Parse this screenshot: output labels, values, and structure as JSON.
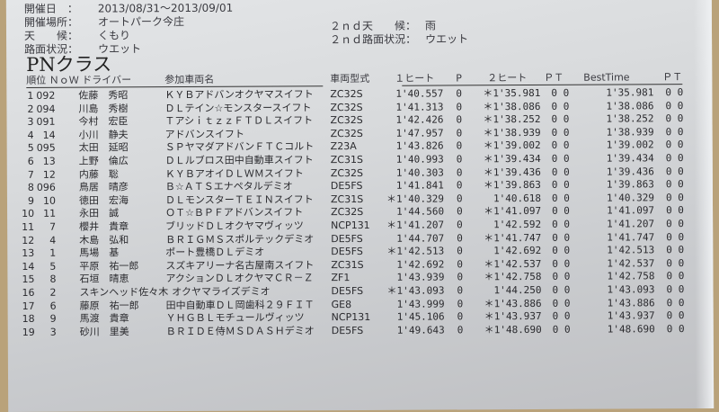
{
  "header": {
    "date_label": "開催日　：",
    "date_value": "2013/08/31～2013/09/01",
    "venue_label": "開催場所：",
    "venue_value": "オートパーク今庄",
    "weather_label": "天　　候：",
    "weather_value": "くもり",
    "road_label": "路面状況：",
    "road_value": "ウエット",
    "weather2_label": "２ｎｄ天　　候：",
    "weather2_value": "雨",
    "road2_label": "２ｎｄ路面状況：",
    "road2_value": "ウエット"
  },
  "class_title": "PNクラス",
  "columns": {
    "rank_no_driver": "順位 ＮｏＷ ドライバー",
    "car_name": "参加車両名",
    "model": "車両型式",
    "heat1": "１ヒート",
    "p": "P",
    "heat2": "２ヒート",
    "pt": "ＰＴ",
    "best": "BestTime",
    "pt2": "ＰＴ"
  },
  "rows": [
    {
      "rank": "1",
      "no": "092",
      "driver": "佐藤　秀昭",
      "car": "ＫＹＢアドバンオクヤマスイフト",
      "model": "ZC32S",
      "h1": "1'40.557",
      "p": "0",
      "h2": "＊1'35.981",
      "pt": "0 0",
      "best": "1'35.981",
      "pt2": "0 0"
    },
    {
      "rank": "2",
      "no": "094",
      "driver": "川島　秀樹",
      "car": "ＤＬテイン☆モンスタースイフト",
      "model": "ZC32S",
      "h1": "1'41.313",
      "p": "0",
      "h2": "＊1'38.086",
      "pt": "0 0",
      "best": "1'38.086",
      "pt2": "0 0"
    },
    {
      "rank": "3",
      "no": "091",
      "driver": "今村　宏臣",
      "car": "ＴアシｉｔｚｚＦＴＤＬスイフト",
      "model": "ZC32S",
      "h1": "1'42.426",
      "p": "0",
      "h2": "＊1'38.252",
      "pt": "0 0",
      "best": "1'38.252",
      "pt2": "0 0"
    },
    {
      "rank": "4",
      "no": "14",
      "driver": "小川　静夫",
      "car": "アドバンスイフト",
      "model": "ZC32S",
      "h1": "1'47.957",
      "p": "0",
      "h2": "＊1'38.939",
      "pt": "0 0",
      "best": "1'38.939",
      "pt2": "0 0"
    },
    {
      "rank": "5",
      "no": "095",
      "driver": "太田　延昭",
      "car": "ＳＰヤマダアドバンＦＴＣコルト",
      "model": "Z23A",
      "h1": "1'43.826",
      "p": "0",
      "h2": "＊1'39.002",
      "pt": "0 0",
      "best": "1'39.002",
      "pt2": "0 0"
    },
    {
      "rank": "6",
      "no": "13",
      "driver": "上野　倫広",
      "car": "ＤＬルブロス田中自動車スイフト",
      "model": "ZC31S",
      "h1": "1'40.993",
      "p": "0",
      "h2": "＊1'39.434",
      "pt": "0 0",
      "best": "1'39.434",
      "pt2": "0 0"
    },
    {
      "rank": "7",
      "no": "12",
      "driver": "内藤　聡",
      "car": "ＫＹＢアオイＤＬＷＭスイフト",
      "model": "ZC32S",
      "h1": "1'40.303",
      "p": "0",
      "h2": "＊1'39.436",
      "pt": "0 0",
      "best": "1'39.436",
      "pt2": "0 0"
    },
    {
      "rank": "8",
      "no": "096",
      "driver": "鳥居　晴彦",
      "car": "Ｂ☆ＡＴＳエナペタルデミオ",
      "model": "DE5FS",
      "h1": "1'41.841",
      "p": "0",
      "h2": "＊1'39.863",
      "pt": "0 0",
      "best": "1'39.863",
      "pt2": "0 0"
    },
    {
      "rank": "9",
      "no": "10",
      "driver": "徳田　宏海",
      "car": "ＤＬモンスターＴＥＩＮスイフト",
      "model": "ZC31S",
      "h1": "＊1'40.329",
      "p": "0",
      "h2": "1'40.618",
      "pt": "0 0",
      "best": "1'40.329",
      "pt2": "0 0"
    },
    {
      "rank": "10",
      "no": "11",
      "driver": "永田　誠",
      "car": "ＯＴ☆ＢＰＦアドバンスイフト",
      "model": "ZC32S",
      "h1": "1'44.560",
      "p": "0",
      "h2": "＊1'41.097",
      "pt": "0 0",
      "best": "1'41.097",
      "pt2": "0 0"
    },
    {
      "rank": "11",
      "no": "7",
      "driver": "櫻井　貴章",
      "car": "ブリッドＤＬオクヤマヴィッツ",
      "model": "NCP131",
      "h1": "＊1'41.207",
      "p": "0",
      "h2": "1'42.592",
      "pt": "0 0",
      "best": "1'41.207",
      "pt2": "0 0"
    },
    {
      "rank": "12",
      "no": "4",
      "driver": "木島　弘和",
      "car": "ＢＲＩＧＭＳスポルテックデミオ",
      "model": "DE5FS",
      "h1": "1'44.707",
      "p": "0",
      "h2": "＊1'41.747",
      "pt": "0 0",
      "best": "1'41.747",
      "pt2": "0 0"
    },
    {
      "rank": "13",
      "no": "1",
      "driver": "馬場　基",
      "car": "ポート豊橋ＤＬデミオ",
      "model": "DE5FS",
      "h1": "＊1'42.513",
      "p": "0",
      "h2": "1'42.692",
      "pt": "0 0",
      "best": "1'42.513",
      "pt2": "0 0"
    },
    {
      "rank": "14",
      "no": "5",
      "driver": "平原　祐一郎",
      "car": "スズキアリーナ名古屋南スイフト",
      "model": "ZC31S",
      "h1": "1'42.692",
      "p": "0",
      "h2": "＊1'42.537",
      "pt": "0 0",
      "best": "1'42.537",
      "pt2": "0 0"
    },
    {
      "rank": "15",
      "no": "8",
      "driver": "石垣　晴恵",
      "car": "アクションＤＬオクヤマＣＲ－Ｚ",
      "model": "ZF1",
      "h1": "1'43.939",
      "p": "0",
      "h2": "＊1'42.758",
      "pt": "0 0",
      "best": "1'42.758",
      "pt2": "0 0"
    },
    {
      "rank": "16",
      "no": "2",
      "driver": "スキンヘッド佐々木",
      "car": "オクヤマライズデミオ",
      "model": "DE5FS",
      "h1": "＊1'43.093",
      "p": "0",
      "h2": "1'44.250",
      "pt": "0 0",
      "best": "1'43.093",
      "pt2": "0 0"
    },
    {
      "rank": "17",
      "no": "6",
      "driver": "藤原　祐一郎",
      "car": "田中自動車ＤＬ岡歯科２９ＦＩＴ",
      "model": "GE8",
      "h1": "1'43.999",
      "p": "0",
      "h2": "＊1'43.886",
      "pt": "0 0",
      "best": "1'43.886",
      "pt2": "0 0"
    },
    {
      "rank": "18",
      "no": "9",
      "driver": "馬渡　貴章",
      "car": "ＹＨＧＢＬモチュールヴィッツ",
      "model": "NCP131",
      "h1": "1'45.106",
      "p": "0",
      "h2": "＊1'43.937",
      "pt": "0 0",
      "best": "1'43.937",
      "pt2": "0 0"
    },
    {
      "rank": "19",
      "no": "3",
      "driver": "砂川　里美",
      "car": "ＢＲＩＤＥ侍ＭＳＤＡＳＨデミオ",
      "model": "DE5FS",
      "h1": "1'49.643",
      "p": "0",
      "h2": "＊1'48.690",
      "pt": "0 0",
      "best": "1'48.690",
      "pt2": "0 0"
    }
  ]
}
